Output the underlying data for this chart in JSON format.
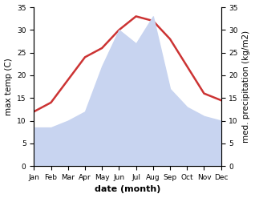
{
  "months": [
    "Jan",
    "Feb",
    "Mar",
    "Apr",
    "May",
    "Jun",
    "Jul",
    "Aug",
    "Sep",
    "Oct",
    "Nov",
    "Dec"
  ],
  "precipitation": [
    8.5,
    8.5,
    10,
    12,
    22,
    30,
    27,
    33,
    17,
    13,
    11,
    10
  ],
  "max_temp": [
    12,
    14,
    19,
    24,
    26,
    30,
    33,
    32,
    28,
    22,
    16,
    14.5
  ],
  "temp_color": "#cc3333",
  "precip_fill_color": "#c8d4f0",
  "precip_line_color": "#c8d4f0",
  "background_color": "#ffffff",
  "ylim_precip": [
    0,
    35
  ],
  "ylim_temp": [
    0,
    35
  ],
  "xlabel": "date (month)",
  "ylabel_left": "max temp (C)",
  "ylabel_right": "med. precipitation (kg/m2)",
  "axis_fontsize": 7.5,
  "tick_fontsize": 6.5,
  "xlabel_fontsize": 8
}
